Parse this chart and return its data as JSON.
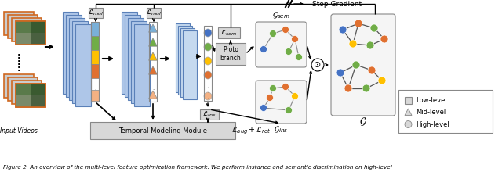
{
  "caption": "Figure 2  An overview of the multi-level feature optimization framework. We perform instance and semantic discrimination on high-level",
  "bg_color": "#ffffff",
  "fig_width": 6.4,
  "fig_height": 2.2,
  "stop_gradient_text": "Stop Gradient",
  "temporal_module_text": "Temporal Modeling Module",
  "input_videos_text": "Input Videos",
  "proto_text": "Proto\nbranch",
  "legend_low": "Low-level",
  "legend_mid": "Mid-level",
  "legend_high": "High-level",
  "colors": {
    "feature_fill": "#aec6e8",
    "feature_border": "#5a80b8",
    "orange_frame": "#d06820",
    "gray_box_fc": "#d8d8d8",
    "gray_box_ec": "#888888",
    "node_blue": "#4472c4",
    "node_orange": "#e07030",
    "node_green": "#70ad47",
    "node_yellow": "#ffc000",
    "node_peach": "#f4b183",
    "node_dark": "#2e4d7b",
    "graph_edge": "#888888",
    "graph_bg": "#f5f5f5"
  }
}
